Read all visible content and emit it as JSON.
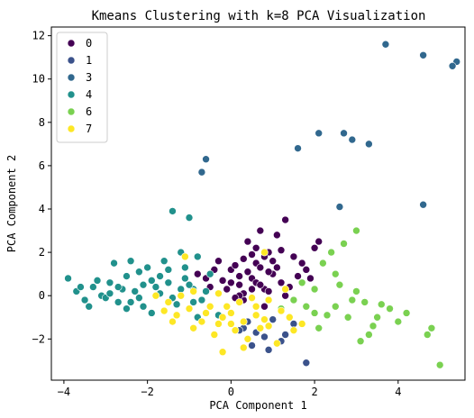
{
  "chart_data": {
    "type": "scatter",
    "title": "Kmeans Clustering with k=8 PCA Visualization",
    "xlabel": "PCA Component 1",
    "ylabel": "PCA Component 2",
    "xlim": [
      -4.3,
      5.6
    ],
    "ylim": [
      -3.9,
      12.4
    ],
    "xticks": [
      -4,
      -2,
      0,
      2,
      4
    ],
    "yticks": [
      -2,
      0,
      2,
      4,
      6,
      8,
      10,
      12
    ],
    "grid": false,
    "legend_position": "top-left",
    "series": [
      {
        "name": "0",
        "color": "#440154",
        "points": [
          [
            0.2,
            0.5
          ],
          [
            0.5,
            0.8
          ],
          [
            0.8,
            0.3
          ],
          [
            -0.2,
            0.7
          ],
          [
            1.0,
            1.0
          ],
          [
            0.3,
            -0.2
          ],
          [
            0.6,
            1.5
          ],
          [
            1.2,
            0.6
          ],
          [
            -0.5,
            0.4
          ],
          [
            0.9,
            2.0
          ],
          [
            0.4,
            2.5
          ],
          [
            1.5,
            1.8
          ],
          [
            1.8,
            1.2
          ],
          [
            -0.8,
            1.0
          ],
          [
            0.0,
            1.2
          ],
          [
            1.3,
            3.5
          ],
          [
            0.7,
            3.0
          ],
          [
            1.1,
            2.8
          ],
          [
            2.0,
            2.2
          ],
          [
            2.1,
            2.5
          ],
          [
            0.5,
            1.9
          ],
          [
            0.1,
            1.4
          ],
          [
            1.6,
            0.9
          ],
          [
            -0.3,
            1.6
          ],
          [
            0.8,
            -0.5
          ],
          [
            0.3,
            0.1
          ],
          [
            0.6,
            0.6
          ],
          [
            0.9,
            0.2
          ],
          [
            1.4,
            0.4
          ],
          [
            0.2,
            0.9
          ],
          [
            -0.1,
            0.3
          ],
          [
            0.4,
            1.1
          ],
          [
            1.0,
            1.6
          ],
          [
            1.2,
            2.1
          ],
          [
            0.7,
            1.3
          ],
          [
            0.0,
            0.6
          ],
          [
            0.5,
            0.3
          ],
          [
            0.8,
            1.8
          ],
          [
            -0.6,
            0.8
          ],
          [
            1.7,
            1.5
          ],
          [
            1.9,
            0.8
          ],
          [
            0.3,
            1.7
          ],
          [
            0.6,
            2.2
          ],
          [
            1.1,
            1.3
          ],
          [
            -0.4,
            1.2
          ],
          [
            0.2,
            0.0
          ],
          [
            0.9,
            1.1
          ],
          [
            1.3,
            0.0
          ],
          [
            0.1,
            -0.1
          ],
          [
            0.7,
            0.5
          ]
        ]
      },
      {
        "name": "1",
        "color": "#3b528b",
        "points": [
          [
            0.3,
            -1.5
          ],
          [
            0.6,
            -1.7
          ],
          [
            0.9,
            -2.5
          ],
          [
            1.2,
            -2.1
          ],
          [
            0.4,
            -1.2
          ],
          [
            0.8,
            -1.9
          ],
          [
            1.8,
            -3.1
          ],
          [
            0.5,
            -2.3
          ],
          [
            1.5,
            -1.3
          ],
          [
            1.0,
            -1.1
          ],
          [
            0.2,
            -1.6
          ],
          [
            1.3,
            -1.8
          ]
        ]
      },
      {
        "name": "3",
        "color": "#31688e",
        "points": [
          [
            3.7,
            11.6
          ],
          [
            4.6,
            11.1
          ],
          [
            5.4,
            10.8
          ],
          [
            5.3,
            10.6
          ],
          [
            -0.6,
            6.3
          ],
          [
            -0.7,
            5.7
          ],
          [
            1.6,
            6.8
          ],
          [
            2.1,
            7.5
          ],
          [
            2.7,
            7.5
          ],
          [
            2.9,
            7.2
          ],
          [
            3.3,
            7.0
          ],
          [
            2.6,
            4.1
          ],
          [
            4.6,
            4.2
          ]
        ]
      },
      {
        "name": "4",
        "color": "#21918c",
        "points": [
          [
            -3.9,
            0.8
          ],
          [
            -3.7,
            0.2
          ],
          [
            -3.5,
            -0.2
          ],
          [
            -3.3,
            0.4
          ],
          [
            -3.1,
            0.0
          ],
          [
            -2.9,
            0.6
          ],
          [
            -2.7,
            -0.3
          ],
          [
            -2.5,
            0.9
          ],
          [
            -2.3,
            0.2
          ],
          [
            -2.1,
            -0.5
          ],
          [
            -1.9,
            0.7
          ],
          [
            -1.7,
            0.1
          ],
          [
            -1.5,
            1.2
          ],
          [
            -1.3,
            -0.4
          ],
          [
            -1.1,
            0.8
          ],
          [
            -0.9,
            0.3
          ],
          [
            -0.7,
            -0.2
          ],
          [
            -0.5,
            1.0
          ],
          [
            -2.8,
            1.5
          ],
          [
            -2.4,
            1.6
          ],
          [
            -2.0,
            1.3
          ],
          [
            -1.6,
            1.6
          ],
          [
            -1.2,
            2.0
          ],
          [
            -0.8,
            1.8
          ],
          [
            -3.4,
            -0.5
          ],
          [
            -3.0,
            -0.1
          ],
          [
            -2.6,
            0.3
          ],
          [
            -2.2,
            -0.1
          ],
          [
            -1.8,
            0.4
          ],
          [
            -1.4,
            -0.1
          ],
          [
            -1.0,
            0.5
          ],
          [
            -0.6,
            0.2
          ],
          [
            -1.4,
            3.9
          ],
          [
            -1.0,
            3.6
          ],
          [
            -0.3,
            -0.9
          ],
          [
            -0.8,
            -1.0
          ],
          [
            -2.5,
            -0.6
          ],
          [
            -1.9,
            -0.8
          ],
          [
            -3.2,
            0.7
          ],
          [
            -2.9,
            0.1
          ],
          [
            -2.4,
            -0.3
          ],
          [
            -1.7,
            0.9
          ],
          [
            -1.2,
            0.3
          ],
          [
            -0.9,
            -0.3
          ],
          [
            -2.1,
            0.5
          ],
          [
            -1.5,
            0.6
          ],
          [
            -2.7,
            0.4
          ],
          [
            -3.6,
            0.4
          ],
          [
            -2.2,
            1.1
          ],
          [
            -1.1,
            1.3
          ]
        ]
      },
      {
        "name": "6",
        "color": "#7ad151",
        "points": [
          [
            2.5,
            -0.5
          ],
          [
            2.8,
            -1.0
          ],
          [
            3.0,
            0.2
          ],
          [
            3.2,
            -0.3
          ],
          [
            2.2,
            1.5
          ],
          [
            2.4,
            2.0
          ],
          [
            2.7,
            2.4
          ],
          [
            3.0,
            3.0
          ],
          [
            3.5,
            -1.0
          ],
          [
            3.8,
            -0.6
          ],
          [
            4.2,
            -0.8
          ],
          [
            4.7,
            -1.8
          ],
          [
            4.8,
            -1.5
          ],
          [
            5.0,
            -3.2
          ],
          [
            2.1,
            -1.5
          ],
          [
            1.8,
            -0.5
          ],
          [
            3.4,
            -1.4
          ],
          [
            2.6,
            0.5
          ],
          [
            1.5,
            -0.2
          ],
          [
            2.0,
            0.3
          ],
          [
            3.1,
            -2.1
          ],
          [
            2.3,
            -0.9
          ],
          [
            2.9,
            -0.2
          ],
          [
            3.6,
            -0.4
          ],
          [
            1.7,
            0.6
          ],
          [
            2.0,
            -0.8
          ],
          [
            3.3,
            -1.8
          ],
          [
            2.5,
            1.0
          ],
          [
            1.2,
            -0.6
          ],
          [
            4.0,
            -1.2
          ]
        ]
      },
      {
        "name": "7",
        "color": "#fde725",
        "points": [
          [
            -0.5,
            -0.5
          ],
          [
            -0.2,
            -1.0
          ],
          [
            0.0,
            -0.8
          ],
          [
            0.3,
            -1.2
          ],
          [
            0.6,
            -0.9
          ],
          [
            0.9,
            -1.4
          ],
          [
            1.2,
            -0.7
          ],
          [
            -0.7,
            -1.2
          ],
          [
            -1.0,
            -0.6
          ],
          [
            -1.5,
            -0.3
          ],
          [
            -1.8,
            0.0
          ],
          [
            -1.4,
            -1.2
          ],
          [
            -0.9,
            -1.5
          ],
          [
            -0.4,
            -1.8
          ],
          [
            0.1,
            -1.6
          ],
          [
            0.4,
            -2.0
          ],
          [
            0.7,
            -1.5
          ],
          [
            1.1,
            -2.2
          ],
          [
            1.4,
            -1.0
          ],
          [
            -0.2,
            -2.6
          ],
          [
            0.2,
            -0.3
          ],
          [
            0.5,
            -0.1
          ],
          [
            -0.1,
            -0.5
          ],
          [
            -1.1,
            1.8
          ],
          [
            -0.9,
            0.2
          ],
          [
            -0.3,
            0.1
          ],
          [
            0.8,
            2.0
          ],
          [
            1.3,
            0.3
          ],
          [
            -1.6,
            -0.7
          ],
          [
            -1.2,
            0.0
          ],
          [
            0.0,
            -1.3
          ],
          [
            0.6,
            -0.5
          ],
          [
            0.9,
            -0.2
          ],
          [
            1.5,
            -1.6
          ],
          [
            -0.6,
            -0.8
          ],
          [
            -0.3,
            -1.3
          ],
          [
            0.3,
            -2.4
          ],
          [
            0.8,
            -1.1
          ],
          [
            1.7,
            -1.3
          ],
          [
            -1.3,
            -0.9
          ]
        ]
      }
    ]
  }
}
